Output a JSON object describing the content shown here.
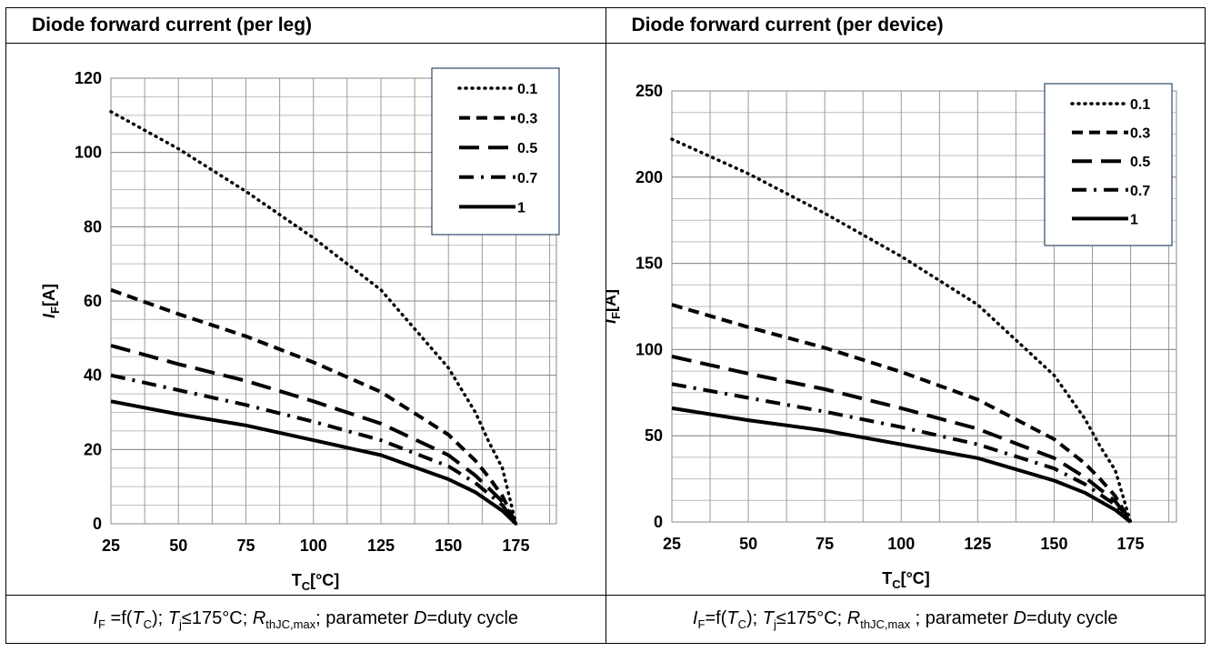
{
  "panels": [
    {
      "header": "Diode forward current (per leg)",
      "caption": {
        "p1": "I",
        "p1sub": "F",
        "p2": " =f(",
        "p3": "T",
        "p3sub": "C",
        "p4": "); ",
        "p5": "T",
        "p5sub": "j",
        "p6": "≤175°C; ",
        "p7": "R",
        "p7sub": "thJC,max",
        "p8": "; parameter ",
        "p9": "D",
        "p10": "=duty cycle"
      }
    },
    {
      "header": "Diode forward current (per device)",
      "caption": {
        "p1": "I",
        "p1sub": "F",
        "p2": "=f(",
        "p3": "T",
        "p3sub": "C",
        "p4": "); ",
        "p5": "T",
        "p5sub": "j",
        "p6": "≤175°C; ",
        "p7": "R",
        "p7sub": "thJC,max",
        "p8": " ; parameter ",
        "p9": "D",
        "p10": "=duty cycle"
      }
    }
  ],
  "chart_data": [
    {
      "type": "line",
      "xlabel": {
        "main": "T",
        "sub": "C",
        "rest": "[°C]"
      },
      "ylabel": {
        "main": "I",
        "sub": "F",
        "rest": "[A]"
      },
      "xlim": [
        25,
        190
      ],
      "ylim": [
        0,
        120
      ],
      "xticks": [
        25,
        50,
        75,
        100,
        125,
        150,
        175
      ],
      "yticks": [
        0,
        20,
        40,
        60,
        80,
        100,
        120
      ],
      "grid": true,
      "legend_position": "top-right",
      "series": [
        {
          "name": "0.1",
          "style": "dotted",
          "x": [
            25,
            50,
            75,
            100,
            125,
            150,
            160,
            165,
            170,
            175
          ],
          "y": [
            111,
            101,
            89.5,
            77,
            63,
            42,
            30,
            22,
            15,
            0
          ]
        },
        {
          "name": "0.3",
          "style": "dashed",
          "x": [
            25,
            50,
            75,
            100,
            125,
            150,
            160,
            165,
            170,
            175
          ],
          "y": [
            63,
            56.5,
            50.5,
            43.5,
            35.5,
            24,
            17,
            12.5,
            7.5,
            0
          ]
        },
        {
          "name": "0.5",
          "style": "longdash",
          "x": [
            25,
            50,
            75,
            100,
            125,
            150,
            160,
            165,
            170,
            175
          ],
          "y": [
            48,
            43,
            38.5,
            33,
            27,
            18.5,
            13,
            9.5,
            6,
            0
          ]
        },
        {
          "name": "0.7",
          "style": "dashdot",
          "x": [
            25,
            50,
            75,
            100,
            125,
            150,
            160,
            165,
            170,
            175
          ],
          "y": [
            40,
            36,
            32,
            27.5,
            22.5,
            15.5,
            11,
            8,
            5,
            0
          ]
        },
        {
          "name": "1",
          "style": "solid",
          "x": [
            25,
            50,
            75,
            100,
            125,
            150,
            160,
            165,
            170,
            175
          ],
          "y": [
            33,
            29.5,
            26.5,
            22.5,
            18.5,
            12,
            8.5,
            6,
            3.5,
            0
          ]
        }
      ]
    },
    {
      "type": "line",
      "xlabel": {
        "main": "T",
        "sub": "C",
        "rest": "[°C]"
      },
      "ylabel": {
        "main": "I",
        "sub": "F",
        "rest": "[A]"
      },
      "xlim": [
        25,
        190
      ],
      "ylim": [
        0,
        250
      ],
      "xticks": [
        25,
        50,
        75,
        100,
        125,
        150,
        175
      ],
      "yticks": [
        0,
        50,
        100,
        150,
        200,
        250
      ],
      "grid": true,
      "legend_position": "top-right",
      "series": [
        {
          "name": "0.1",
          "style": "dotted",
          "x": [
            25,
            50,
            75,
            100,
            125,
            150,
            160,
            165,
            170,
            175
          ],
          "y": [
            222,
            202,
            179,
            154,
            126,
            85,
            60,
            44,
            30,
            0
          ]
        },
        {
          "name": "0.3",
          "style": "dashed",
          "x": [
            25,
            50,
            75,
            100,
            125,
            150,
            160,
            165,
            170,
            175
          ],
          "y": [
            126,
            113,
            101,
            87,
            71,
            48,
            34,
            25,
            15,
            0
          ]
        },
        {
          "name": "0.5",
          "style": "longdash",
          "x": [
            25,
            50,
            75,
            100,
            125,
            150,
            160,
            165,
            170,
            175
          ],
          "y": [
            96,
            86,
            77,
            66,
            54,
            37,
            26,
            19,
            12,
            0
          ]
        },
        {
          "name": "0.7",
          "style": "dashdot",
          "x": [
            25,
            50,
            75,
            100,
            125,
            150,
            160,
            165,
            170,
            175
          ],
          "y": [
            80,
            72,
            64,
            55,
            45,
            31,
            22,
            16,
            10,
            0
          ]
        },
        {
          "name": "1",
          "style": "solid",
          "x": [
            25,
            50,
            75,
            100,
            125,
            150,
            160,
            165,
            170,
            175
          ],
          "y": [
            66,
            59,
            53,
            45,
            37,
            24,
            17,
            12,
            7,
            0
          ]
        }
      ]
    }
  ]
}
